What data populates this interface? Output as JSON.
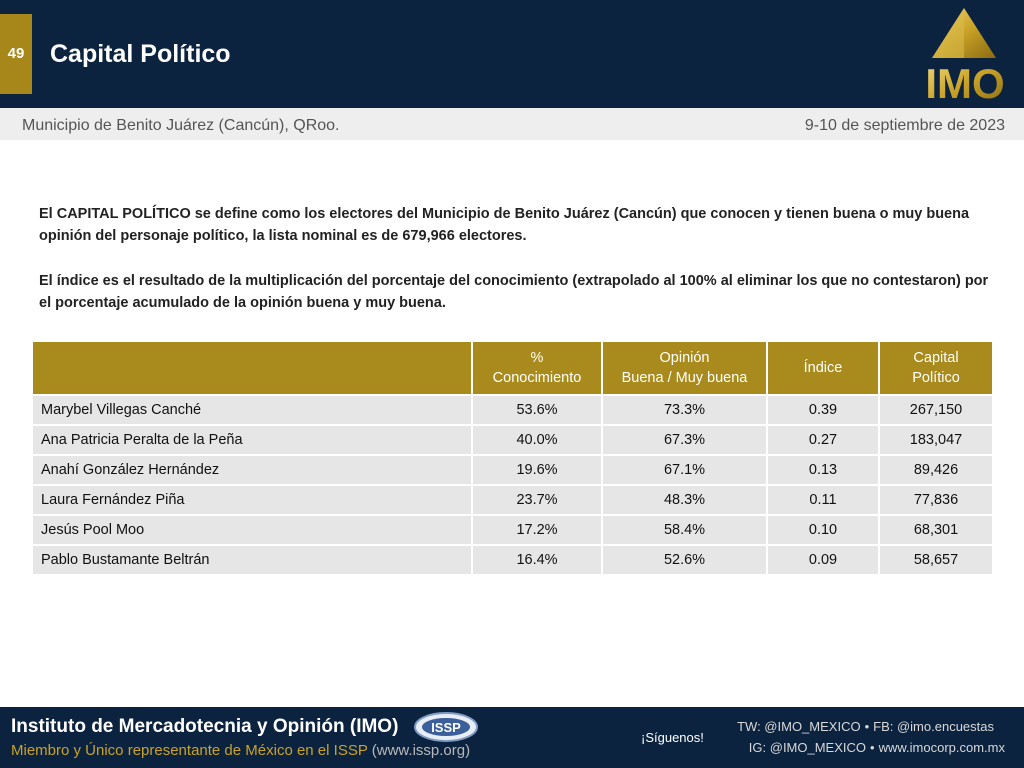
{
  "header": {
    "page_number": "49",
    "title": "Capital Político",
    "logo_text": "IMO"
  },
  "subheader": {
    "location": "Municipio de Benito Juárez (Cancún), QRoo.",
    "date": "9-10 de septiembre de 2023"
  },
  "description": {
    "p1": "El CAPITAL POLÍTICO se define como los electores del Municipio de Benito Juárez (Cancún) que conocen y tienen buena o muy buena opinión del personaje político, la lista nominal es de 679,966 electores.",
    "p2": "El índice es el resultado de la multiplicación del porcentaje del conocimiento (extrapolado al 100% al eliminar los que no contestaron) por el porcentaje acumulado de la opinión buena y muy buena."
  },
  "table": {
    "headers": [
      {
        "l1": "",
        "l2": ""
      },
      {
        "l1": "%",
        "l2": "Conocimiento"
      },
      {
        "l1": "Opinión",
        "l2": "Buena / Muy buena"
      },
      {
        "l1": "Índice",
        "l2": ""
      },
      {
        "l1": "Capital",
        "l2": "Político"
      }
    ],
    "rows": [
      {
        "name": "Marybel Villegas Canché",
        "conocimiento": "53.6%",
        "opinion": "73.3%",
        "indice": "0.39",
        "capital": "267,150"
      },
      {
        "name": "Ana Patricia Peralta de la Peña",
        "conocimiento": "40.0%",
        "opinion": "67.3%",
        "indice": "0.27",
        "capital": "183,047"
      },
      {
        "name": "Anahí González Hernández",
        "conocimiento": "19.6%",
        "opinion": "67.1%",
        "indice": "0.13",
        "capital": "89,426"
      },
      {
        "name": "Laura Fernández Piña",
        "conocimiento": "23.7%",
        "opinion": "48.3%",
        "indice": "0.11",
        "capital": "77,836"
      },
      {
        "name": "Jesús Pool Moo",
        "conocimiento": "17.2%",
        "opinion": "58.4%",
        "indice": "0.10",
        "capital": "68,301"
      },
      {
        "name": "Pablo Bustamante Beltrán",
        "conocimiento": "16.4%",
        "opinion": "52.6%",
        "indice": "0.09",
        "capital": "58,657"
      }
    ]
  },
  "footer": {
    "title": "Instituto de Mercadotecnia y Opinión (IMO)",
    "subtitle": "Miembro y Único representante de México en el ISSP",
    "subtitle_link": "(www.issp.org)",
    "issp_logo_text": "ISSP",
    "follow_label": "¡Síguenos!",
    "twitter": "TW: @IMO_MEXICO",
    "facebook": "FB: @imo.encuestas",
    "instagram": "IG: @IMO_MEXICO",
    "website": "www.imocorp.com.mx"
  },
  "colors": {
    "navy": "#0c2340",
    "gold": "#a88b1c",
    "row_gray": "#e6e6e6"
  }
}
